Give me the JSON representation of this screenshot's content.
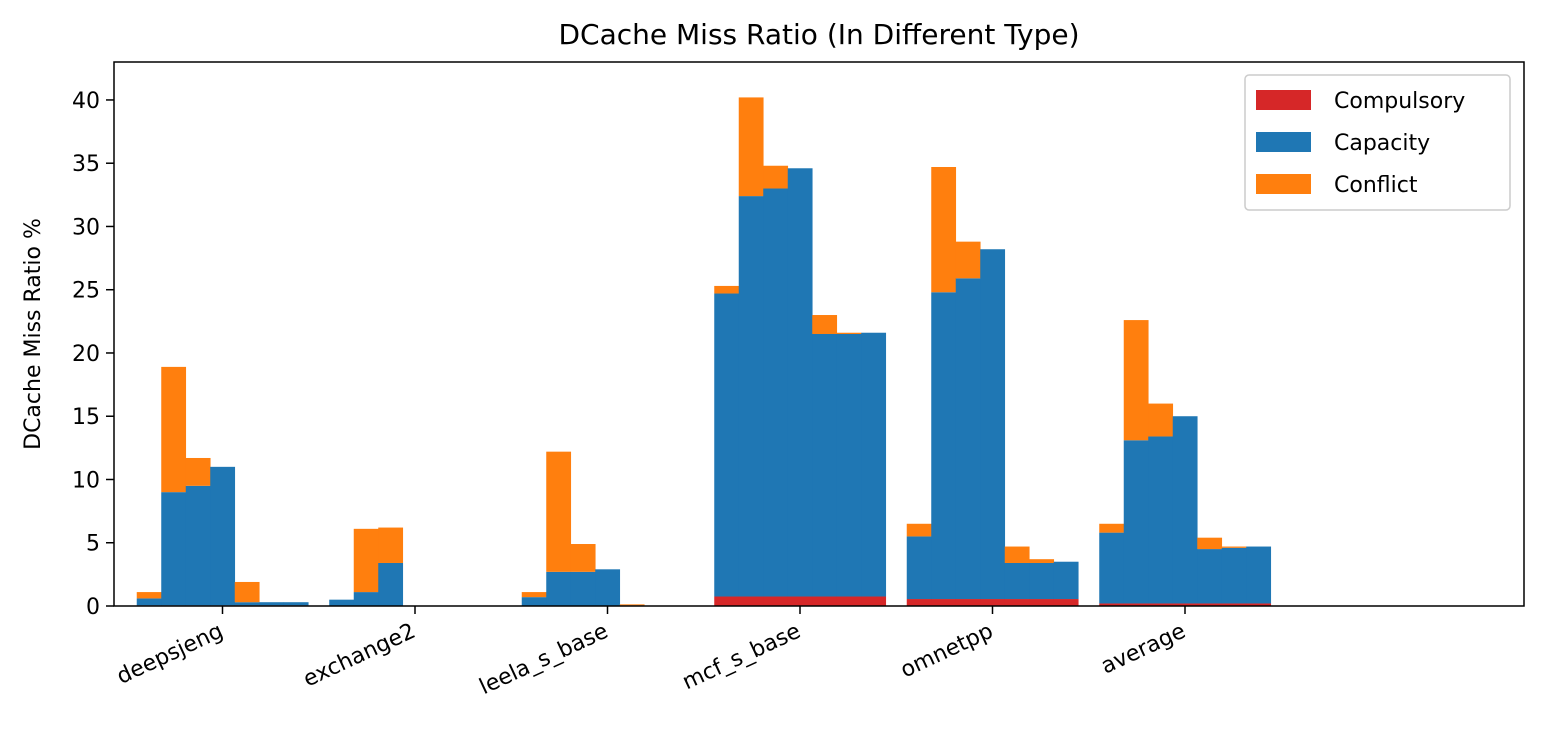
{
  "chart_data": {
    "type": "bar",
    "stacked": true,
    "title": "DCache Miss Ratio (In Different Type)",
    "xlabel": "",
    "ylabel": "DCache Miss Ratio %",
    "ylim": [
      0,
      43
    ],
    "yticks": [
      0,
      5,
      10,
      15,
      20,
      25,
      30,
      35,
      40
    ],
    "grid": false,
    "legend_position": "top-right",
    "categories": [
      "deepsjeng",
      "exchange2",
      "leela_s_base",
      "mcf_s_base",
      "omnetpp",
      "average"
    ],
    "bars_per_category": 7,
    "series": [
      {
        "name": "Compulsory",
        "color": "#d62728",
        "values": [
          [
            0.05,
            0.05,
            0.05,
            0.05,
            0.05,
            0.05,
            0.05
          ],
          [
            0.02,
            0.02,
            0.02,
            0.02,
            0.02,
            0.02,
            0.02
          ],
          [
            0.02,
            0.02,
            0.02,
            0.02,
            0.02,
            0.02,
            0.02
          ],
          [
            0.75,
            0.75,
            0.75,
            0.75,
            0.75,
            0.75,
            0.75
          ],
          [
            0.55,
            0.55,
            0.55,
            0.55,
            0.55,
            0.55,
            0.55
          ],
          [
            0.2,
            0.2,
            0.2,
            0.2,
            0.2,
            0.2,
            0.2
          ]
        ]
      },
      {
        "name": "Capacity",
        "color": "#1f77b4",
        "values": [
          [
            0.55,
            8.95,
            9.45,
            10.95,
            0.25,
            0.25,
            0.25
          ],
          [
            0.48,
            1.08,
            3.38,
            0,
            0,
            0,
            0
          ],
          [
            0.68,
            2.68,
            2.68,
            2.88,
            0.03,
            0,
            0
          ],
          [
            23.95,
            31.65,
            32.25,
            33.85,
            20.75,
            20.75,
            20.85
          ],
          [
            4.95,
            24.25,
            25.35,
            27.65,
            2.85,
            2.85,
            2.95
          ],
          [
            5.6,
            12.9,
            13.2,
            14.8,
            4.3,
            4.4,
            4.5
          ]
        ]
      },
      {
        "name": "Conflict",
        "color": "#ff7f0e",
        "values": [
          [
            0.5,
            9.9,
            2.2,
            0,
            1.6,
            0,
            0
          ],
          [
            0,
            5.0,
            2.8,
            0,
            0,
            0,
            0
          ],
          [
            0.4,
            9.5,
            2.2,
            0,
            0.08,
            0,
            0
          ],
          [
            0.6,
            7.8,
            1.8,
            0,
            1.5,
            0.1,
            0
          ],
          [
            1.0,
            9.9,
            2.9,
            0,
            1.3,
            0.3,
            0
          ],
          [
            0.7,
            9.5,
            2.6,
            0,
            0.9,
            0.1,
            0
          ]
        ]
      }
    ]
  }
}
